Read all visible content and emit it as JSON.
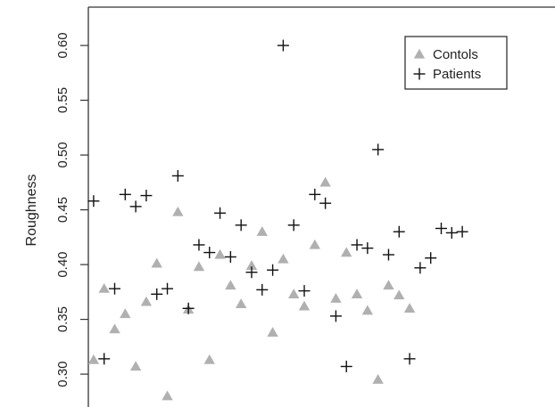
{
  "chart_data": {
    "type": "scatter",
    "title": "",
    "xlabel": "",
    "ylabel": "Roughness",
    "ylim": [
      0.27,
      0.635
    ],
    "xlim": [
      0.5,
      44.8
    ],
    "y_ticks": [
      "0.30",
      "0.35",
      "0.40",
      "0.45",
      "0.50",
      "0.55",
      "0.60"
    ],
    "grid": false,
    "legend": {
      "position": "top-right"
    },
    "series": [
      {
        "name": "Contols",
        "marker": "triangle",
        "color": "#b0b0b0",
        "points": [
          {
            "x": 1,
            "y": 0.313
          },
          {
            "x": 2,
            "y": 0.378
          },
          {
            "x": 3,
            "y": 0.341
          },
          {
            "x": 4,
            "y": 0.355
          },
          {
            "x": 5,
            "y": 0.307
          },
          {
            "x": 6,
            "y": 0.366
          },
          {
            "x": 7,
            "y": 0.401
          },
          {
            "x": 8,
            "y": 0.28
          },
          {
            "x": 9,
            "y": 0.448
          },
          {
            "x": 10,
            "y": 0.359
          },
          {
            "x": 11,
            "y": 0.398
          },
          {
            "x": 12,
            "y": 0.313
          },
          {
            "x": 13,
            "y": 0.409
          },
          {
            "x": 14,
            "y": 0.381
          },
          {
            "x": 15,
            "y": 0.364
          },
          {
            "x": 16,
            "y": 0.399
          },
          {
            "x": 17,
            "y": 0.43
          },
          {
            "x": 18,
            "y": 0.338
          },
          {
            "x": 19,
            "y": 0.405
          },
          {
            "x": 20,
            "y": 0.373
          },
          {
            "x": 21,
            "y": 0.362
          },
          {
            "x": 22,
            "y": 0.418
          },
          {
            "x": 23,
            "y": 0.475
          },
          {
            "x": 24,
            "y": 0.369
          },
          {
            "x": 25,
            "y": 0.411
          },
          {
            "x": 26,
            "y": 0.373
          },
          {
            "x": 27,
            "y": 0.358
          },
          {
            "x": 28,
            "y": 0.295
          },
          {
            "x": 29,
            "y": 0.381
          },
          {
            "x": 30,
            "y": 0.372
          },
          {
            "x": 31,
            "y": 0.36
          }
        ]
      },
      {
        "name": "Patients",
        "marker": "plus",
        "color": "#111111",
        "points": [
          {
            "x": 1,
            "y": 0.458
          },
          {
            "x": 2,
            "y": 0.314
          },
          {
            "x": 3,
            "y": 0.378
          },
          {
            "x": 4,
            "y": 0.464
          },
          {
            "x": 5,
            "y": 0.453
          },
          {
            "x": 6,
            "y": 0.463
          },
          {
            "x": 7,
            "y": 0.373
          },
          {
            "x": 8,
            "y": 0.378
          },
          {
            "x": 9,
            "y": 0.481
          },
          {
            "x": 10,
            "y": 0.36
          },
          {
            "x": 11,
            "y": 0.418
          },
          {
            "x": 12,
            "y": 0.411
          },
          {
            "x": 13,
            "y": 0.447
          },
          {
            "x": 14,
            "y": 0.407
          },
          {
            "x": 15,
            "y": 0.436
          },
          {
            "x": 16,
            "y": 0.393
          },
          {
            "x": 17,
            "y": 0.377
          },
          {
            "x": 18,
            "y": 0.395
          },
          {
            "x": 19,
            "y": 0.6
          },
          {
            "x": 20,
            "y": 0.436
          },
          {
            "x": 21,
            "y": 0.376
          },
          {
            "x": 22,
            "y": 0.464
          },
          {
            "x": 23,
            "y": 0.456
          },
          {
            "x": 24,
            "y": 0.353
          },
          {
            "x": 25,
            "y": 0.307
          },
          {
            "x": 26,
            "y": 0.418
          },
          {
            "x": 27,
            "y": 0.415
          },
          {
            "x": 28,
            "y": 0.505
          },
          {
            "x": 29,
            "y": 0.409
          },
          {
            "x": 30,
            "y": 0.43
          },
          {
            "x": 31,
            "y": 0.314
          },
          {
            "x": 32,
            "y": 0.397
          },
          {
            "x": 33,
            "y": 0.406
          },
          {
            "x": 34,
            "y": 0.433
          },
          {
            "x": 35,
            "y": 0.429
          },
          {
            "x": 36,
            "y": 0.43
          }
        ]
      }
    ]
  }
}
